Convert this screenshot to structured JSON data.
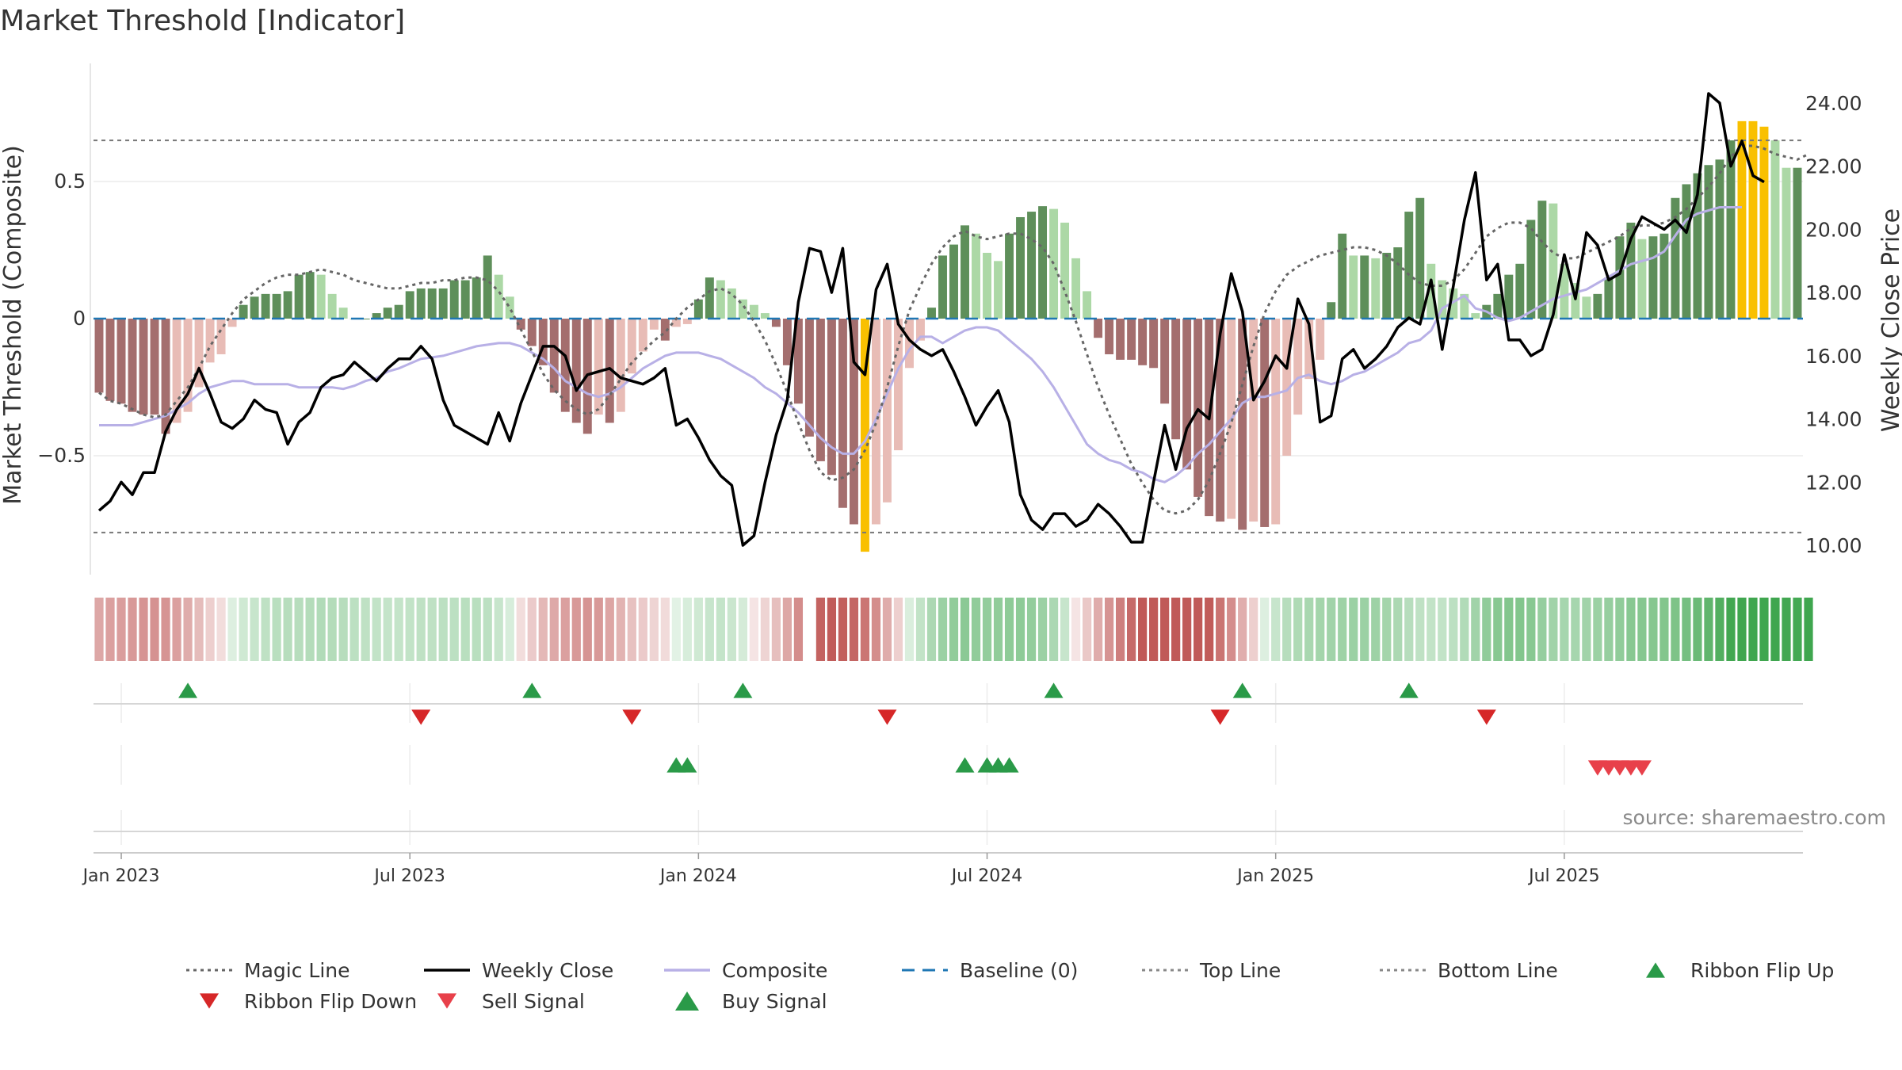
{
  "chart_data": {
    "type": "bar",
    "title": "Market Threshold [Indicator]",
    "ylabel_left": "Market Threshold (Composite)",
    "ylabel_right": "Weekly Close Price",
    "ylim_left": [
      -0.93,
      0.93
    ],
    "ylim_right": [
      8.9,
      25.0
    ],
    "left_ticks": [
      {
        "value": 0.5,
        "label": "0.5"
      },
      {
        "value": 0,
        "label": "0"
      },
      {
        "value": -0.5,
        "label": "−0.5"
      }
    ],
    "right_ticks": [
      {
        "value": 24,
        "label": "24.00"
      },
      {
        "value": 22,
        "label": "22.00"
      },
      {
        "value": 20,
        "label": "20.00"
      },
      {
        "value": 18,
        "label": "18.00"
      },
      {
        "value": 16,
        "label": "16.00"
      },
      {
        "value": 14,
        "label": "14.00"
      },
      {
        "value": 12,
        "label": "12.00"
      },
      {
        "value": 10,
        "label": "10.00"
      }
    ],
    "date_ticks": [
      {
        "week": 2,
        "label": "Jan 2023"
      },
      {
        "week": 28,
        "label": "Jul 2023"
      },
      {
        "week": 54,
        "label": "Jan 2024"
      },
      {
        "week": 80,
        "label": "Jul 2024"
      },
      {
        "week": 106,
        "label": "Jan 2025"
      },
      {
        "week": 132,
        "label": "Jul 2025"
      }
    ],
    "top_line": 0.65,
    "bottom_line": -0.78,
    "composite_hist": [
      -0.27,
      -0.3,
      -0.31,
      -0.34,
      -0.35,
      -0.35,
      -0.42,
      -0.38,
      -0.34,
      -0.25,
      -0.16,
      -0.13,
      -0.03,
      0.05,
      0.08,
      0.09,
      0.09,
      0.1,
      0.16,
      0.17,
      0.16,
      0.09,
      0.04,
      0.0,
      0.0,
      0.02,
      0.04,
      0.05,
      0.1,
      0.11,
      0.11,
      0.11,
      0.14,
      0.14,
      0.15,
      0.23,
      0.16,
      0.08,
      -0.04,
      -0.1,
      -0.17,
      -0.27,
      -0.34,
      -0.38,
      -0.42,
      -0.35,
      -0.38,
      -0.34,
      -0.2,
      -0.12,
      -0.04,
      -0.08,
      -0.03,
      -0.02,
      0.07,
      0.15,
      0.14,
      0.11,
      0.07,
      0.05,
      0.02,
      -0.03,
      -0.17,
      -0.31,
      -0.43,
      -0.52,
      -0.57,
      -0.69,
      -0.75,
      -0.85,
      -0.75,
      -0.67,
      -0.48,
      -0.18,
      -0.08,
      0.04,
      0.23,
      0.27,
      0.34,
      0.31,
      0.24,
      0.21,
      0.31,
      0.37,
      0.39,
      0.41,
      0.4,
      0.35,
      0.22,
      0.1,
      -0.07,
      -0.13,
      -0.15,
      -0.15,
      -0.17,
      -0.18,
      -0.31,
      -0.44,
      -0.55,
      -0.65,
      -0.72,
      -0.74,
      -0.73,
      -0.77,
      -0.74,
      -0.76,
      -0.75,
      -0.5,
      -0.35,
      -0.22,
      -0.15,
      0.06,
      0.31,
      0.23,
      0.23,
      0.22,
      0.24,
      0.26,
      0.39,
      0.44,
      0.2,
      0.14,
      0.11,
      0.09,
      0.02,
      0.05,
      0.09,
      0.16,
      0.2,
      0.36,
      0.43,
      0.42,
      0.2,
      0.13,
      0.08,
      0.09,
      0.15,
      0.3,
      0.35,
      0.29,
      0.3,
      0.31,
      0.44,
      0.49,
      0.53,
      0.56,
      0.58,
      0.65,
      0.72,
      0.72,
      0.7,
      0.65,
      0.55,
      0.55
    ],
    "close": [
      11.1,
      11.4,
      12.0,
      11.6,
      12.3,
      12.3,
      13.6,
      14.3,
      14.8,
      15.6,
      14.8,
      13.9,
      13.7,
      14.0,
      14.6,
      14.3,
      14.2,
      13.2,
      13.9,
      14.2,
      15.0,
      15.3,
      15.4,
      15.8,
      15.5,
      15.2,
      15.6,
      15.9,
      15.9,
      16.3,
      15.9,
      14.6,
      13.8,
      13.6,
      13.4,
      13.2,
      14.2,
      13.3,
      14.5,
      15.4,
      16.3,
      16.3,
      16.0,
      14.9,
      15.4,
      15.5,
      15.6,
      15.3,
      15.2,
      15.1,
      15.3,
      15.6,
      13.8,
      14.0,
      13.4,
      12.7,
      12.2,
      11.9,
      10.0,
      10.3,
      12.0,
      13.5,
      14.6,
      17.7,
      19.4,
      19.3,
      18.0,
      19.4,
      15.8,
      15.4,
      18.1,
      18.9,
      17.0,
      16.5,
      16.2,
      16.0,
      16.2,
      15.5,
      14.7,
      13.8,
      14.4,
      14.9,
      13.9,
      11.6,
      10.8,
      10.5,
      11.0,
      11.0,
      10.6,
      10.8,
      11.3,
      11.0,
      10.6,
      10.1,
      10.1,
      12.0,
      13.8,
      12.4,
      13.7,
      14.3,
      14.0,
      16.7,
      18.6,
      17.4,
      14.6,
      15.2,
      16.0,
      15.6,
      17.8,
      17.0,
      13.9,
      14.1,
      15.9,
      16.2,
      15.6,
      15.9,
      16.3,
      16.9,
      17.2,
      17.0,
      18.4,
      16.2,
      18.2,
      20.3,
      21.8,
      18.4,
      18.9,
      16.5,
      16.5,
      16.0,
      16.2,
      17.3,
      19.2,
      17.8,
      19.9,
      19.5,
      18.4,
      18.6,
      19.7,
      20.4,
      20.2,
      20.0,
      20.3,
      19.9,
      21.1,
      24.3,
      24.0,
      22.0,
      22.8,
      21.7,
      21.5
    ],
    "composite_line": [
      13.8,
      13.8,
      13.8,
      13.8,
      13.9,
      14.0,
      14.1,
      14.3,
      14.5,
      14.8,
      15.0,
      15.1,
      15.2,
      15.2,
      15.1,
      15.1,
      15.1,
      15.1,
      15.0,
      15.0,
      15.0,
      15.0,
      14.95,
      15.05,
      15.2,
      15.3,
      15.5,
      15.6,
      15.75,
      15.9,
      15.95,
      16.0,
      16.1,
      16.2,
      16.3,
      16.35,
      16.4,
      16.4,
      16.3,
      16.1,
      15.9,
      15.6,
      15.2,
      15.0,
      14.8,
      14.7,
      14.8,
      15.0,
      15.3,
      15.6,
      15.8,
      16.0,
      16.1,
      16.1,
      16.1,
      16.0,
      15.9,
      15.7,
      15.5,
      15.3,
      15.0,
      14.8,
      14.5,
      14.2,
      13.8,
      13.4,
      13.1,
      12.9,
      12.9,
      13.3,
      14.0,
      14.8,
      15.6,
      16.2,
      16.6,
      16.6,
      16.4,
      16.6,
      16.8,
      16.9,
      16.9,
      16.8,
      16.5,
      16.2,
      15.9,
      15.5,
      15.0,
      14.4,
      13.8,
      13.2,
      12.9,
      12.7,
      12.6,
      12.4,
      12.3,
      12.1,
      12.0,
      12.2,
      12.5,
      12.9,
      13.2,
      13.6,
      14.0,
      14.5,
      14.7,
      14.7,
      14.8,
      14.9,
      15.3,
      15.4,
      15.2,
      15.1,
      15.2,
      15.4,
      15.5,
      15.7,
      15.9,
      16.1,
      16.4,
      16.5,
      16.8,
      17.5,
      17.7,
      17.9,
      17.5,
      17.4,
      17.2,
      17.1,
      17.2,
      17.4,
      17.6,
      17.8,
      17.9,
      18.0,
      18.1,
      18.3,
      18.5,
      18.7,
      18.9,
      19.0,
      19.1,
      19.3,
      19.8,
      20.3,
      20.5,
      20.6,
      20.7,
      20.7,
      20.7
    ],
    "magic_line": [
      -0.27,
      -0.3,
      -0.31,
      -0.33,
      -0.35,
      -0.36,
      -0.35,
      -0.3,
      -0.25,
      -0.18,
      -0.1,
      -0.04,
      0.02,
      0.07,
      0.1,
      0.13,
      0.15,
      0.16,
      0.16,
      0.17,
      0.18,
      0.17,
      0.16,
      0.14,
      0.13,
      0.12,
      0.11,
      0.11,
      0.12,
      0.13,
      0.13,
      0.14,
      0.14,
      0.15,
      0.15,
      0.14,
      0.1,
      0.04,
      -0.04,
      -0.12,
      -0.2,
      -0.26,
      -0.3,
      -0.33,
      -0.35,
      -0.33,
      -0.28,
      -0.22,
      -0.16,
      -0.12,
      -0.08,
      -0.05,
      0.0,
      0.04,
      0.07,
      0.1,
      0.11,
      0.09,
      0.05,
      -0.01,
      -0.08,
      -0.17,
      -0.27,
      -0.38,
      -0.48,
      -0.56,
      -0.59,
      -0.58,
      -0.55,
      -0.48,
      -0.38,
      -0.25,
      -0.1,
      0.03,
      0.12,
      0.2,
      0.26,
      0.3,
      0.32,
      0.3,
      0.29,
      0.3,
      0.31,
      0.31,
      0.29,
      0.26,
      0.2,
      0.1,
      -0.01,
      -0.13,
      -0.25,
      -0.35,
      -0.44,
      -0.53,
      -0.6,
      -0.66,
      -0.7,
      -0.71,
      -0.7,
      -0.66,
      -0.59,
      -0.49,
      -0.38,
      -0.24,
      -0.1,
      0.02,
      0.1,
      0.16,
      0.19,
      0.21,
      0.23,
      0.24,
      0.25,
      0.26,
      0.26,
      0.25,
      0.23,
      0.2,
      0.16,
      0.13,
      0.12,
      0.12,
      0.14,
      0.18,
      0.24,
      0.3,
      0.33,
      0.35,
      0.35,
      0.33,
      0.28,
      0.24,
      0.22,
      0.22,
      0.24,
      0.26,
      0.28,
      0.3,
      0.33,
      0.34,
      0.34,
      0.35,
      0.37,
      0.4,
      0.44,
      0.48,
      0.53,
      0.59,
      0.63,
      0.63,
      0.62,
      0.6,
      0.59,
      0.58,
      0.6
    ],
    "ribbon_gap_weeks": [
      64
    ],
    "ribbon_flip_up": [
      8,
      39,
      58,
      86,
      103,
      118
    ],
    "ribbon_flip_down": [
      29,
      48,
      71,
      101,
      125
    ],
    "buy_signal": [
      52,
      53,
      78,
      80,
      81,
      82
    ],
    "sell_signal": [
      135,
      136,
      137,
      138,
      139
    ],
    "source": "source: sharemaestro.com",
    "legend": [
      {
        "label": "Magic Line",
        "kind": "dot",
        "color": "#666666"
      },
      {
        "label": "Weekly Close",
        "kind": "solid",
        "color": "#000000"
      },
      {
        "label": "Composite",
        "kind": "solid",
        "color": "#b8b0e6"
      },
      {
        "label": "Baseline (0)",
        "kind": "dash",
        "color": "#1f77b4"
      },
      {
        "label": "Top Line",
        "kind": "dot",
        "color": "#888888"
      },
      {
        "label": "Bottom Line",
        "kind": "dot",
        "color": "#888888"
      },
      {
        "label": "Ribbon Flip Up",
        "kind": "tri-up",
        "color": "#2a9a48"
      },
      {
        "label": "Ribbon Flip Down",
        "kind": "tri-down",
        "color": "#d62728"
      },
      {
        "label": "Sell Signal",
        "kind": "tri-down",
        "color": "#e8404a"
      },
      {
        "label": "Buy Signal",
        "kind": "tri-up",
        "color": "#2a9a48"
      }
    ],
    "colors": {
      "pos_dark": "#5e8f5a",
      "pos_light": "#acd8a6",
      "neg_dark": "#a46e6e",
      "neg_light": "#e8bcb6",
      "extreme": "#f9c000",
      "ribbon_green": "#3fa64f",
      "ribbon_red": "#c05a58"
    }
  }
}
